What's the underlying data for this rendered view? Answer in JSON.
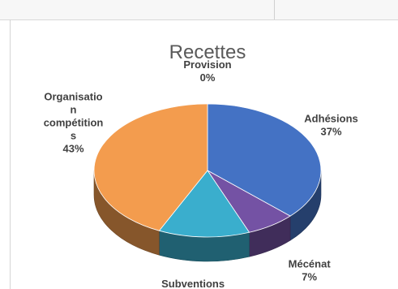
{
  "chart_data": {
    "type": "pie",
    "title": "Recettes",
    "style": "3d-pie",
    "legend": "none",
    "slices": [
      {
        "name": "Adhésions",
        "value": 37,
        "pct": "37%",
        "color": "#4472c4",
        "label_lines": [
          "Adhésions"
        ]
      },
      {
        "name": "Mécénat",
        "value": 7,
        "pct": "7%",
        "color": "#7452a4",
        "label_lines": [
          "Mécénat"
        ]
      },
      {
        "name": "Subventions",
        "value": 13,
        "pct": "13%",
        "color": "#3aaecd",
        "label_lines": [
          "Subventions"
        ]
      },
      {
        "name": "Organisation compétitions",
        "value": 43,
        "pct": "43%",
        "color": "#f39c4e",
        "label_lines": [
          "Organisatio",
          "n",
          "compétition",
          "s"
        ]
      },
      {
        "name": "Provision",
        "value": 0,
        "pct": "0%",
        "color": "#a5a5a5",
        "label_lines": [
          "Provision"
        ]
      }
    ]
  }
}
